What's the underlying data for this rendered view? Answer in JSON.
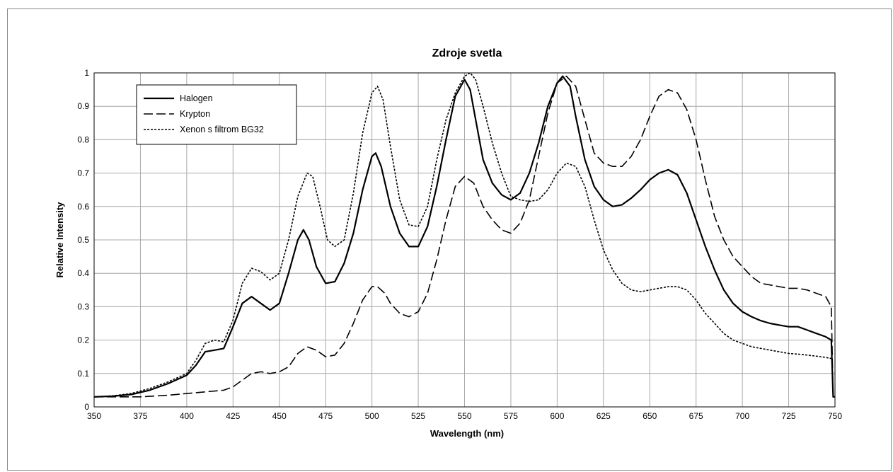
{
  "chart_data": {
    "type": "line",
    "title": "Zdroje svetla",
    "xlabel": "Wavelength (nm)",
    "ylabel": "Relative Intensity",
    "xlim": [
      350,
      750
    ],
    "ylim": [
      0,
      1
    ],
    "x_ticks": [
      "350",
      "375",
      "400",
      "425",
      "450",
      "475",
      "500",
      "525",
      "550",
      "575",
      "600",
      "625",
      "650",
      "675",
      "700",
      "725",
      "750"
    ],
    "y_ticks": [
      "0",
      "0.1",
      "0.2",
      "0.3",
      "0.4",
      "0.5",
      "0.6",
      "0.7",
      "0.8",
      "0.9",
      "1"
    ],
    "grid": true,
    "legend_position": "top-left",
    "series": [
      {
        "name": "Halogen",
        "style": "solid",
        "color": "#000000",
        "points": [
          [
            350,
            0.03
          ],
          [
            360,
            0.032
          ],
          [
            370,
            0.037
          ],
          [
            380,
            0.05
          ],
          [
            390,
            0.07
          ],
          [
            400,
            0.095
          ],
          [
            405,
            0.125
          ],
          [
            410,
            0.165
          ],
          [
            415,
            0.17
          ],
          [
            420,
            0.175
          ],
          [
            425,
            0.24
          ],
          [
            430,
            0.31
          ],
          [
            435,
            0.33
          ],
          [
            440,
            0.31
          ],
          [
            445,
            0.29
          ],
          [
            450,
            0.31
          ],
          [
            455,
            0.4
          ],
          [
            460,
            0.5
          ],
          [
            463,
            0.53
          ],
          [
            466,
            0.5
          ],
          [
            470,
            0.42
          ],
          [
            475,
            0.37
          ],
          [
            480,
            0.375
          ],
          [
            485,
            0.43
          ],
          [
            490,
            0.52
          ],
          [
            495,
            0.65
          ],
          [
            500,
            0.75
          ],
          [
            502,
            0.76
          ],
          [
            505,
            0.72
          ],
          [
            510,
            0.6
          ],
          [
            515,
            0.52
          ],
          [
            520,
            0.48
          ],
          [
            525,
            0.48
          ],
          [
            530,
            0.54
          ],
          [
            535,
            0.66
          ],
          [
            540,
            0.8
          ],
          [
            545,
            0.93
          ],
          [
            550,
            0.98
          ],
          [
            553,
            0.95
          ],
          [
            556,
            0.86
          ],
          [
            560,
            0.74
          ],
          [
            565,
            0.67
          ],
          [
            570,
            0.635
          ],
          [
            575,
            0.62
          ],
          [
            580,
            0.64
          ],
          [
            585,
            0.7
          ],
          [
            590,
            0.79
          ],
          [
            595,
            0.9
          ],
          [
            600,
            0.97
          ],
          [
            603,
            0.99
          ],
          [
            607,
            0.96
          ],
          [
            610,
            0.87
          ],
          [
            615,
            0.74
          ],
          [
            620,
            0.66
          ],
          [
            625,
            0.62
          ],
          [
            630,
            0.6
          ],
          [
            635,
            0.605
          ],
          [
            640,
            0.625
          ],
          [
            645,
            0.65
          ],
          [
            650,
            0.68
          ],
          [
            655,
            0.7
          ],
          [
            660,
            0.71
          ],
          [
            665,
            0.695
          ],
          [
            670,
            0.64
          ],
          [
            675,
            0.56
          ],
          [
            680,
            0.48
          ],
          [
            685,
            0.41
          ],
          [
            690,
            0.35
          ],
          [
            695,
            0.31
          ],
          [
            700,
            0.285
          ],
          [
            705,
            0.27
          ],
          [
            710,
            0.258
          ],
          [
            715,
            0.25
          ],
          [
            720,
            0.245
          ],
          [
            725,
            0.24
          ],
          [
            730,
            0.24
          ],
          [
            735,
            0.23
          ],
          [
            740,
            0.22
          ],
          [
            745,
            0.21
          ],
          [
            748,
            0.2
          ],
          [
            749,
            0.03
          ],
          [
            750,
            0.03
          ]
        ]
      },
      {
        "name": "Krypton",
        "style": "dashed",
        "color": "#000000",
        "points": [
          [
            350,
            0.03
          ],
          [
            360,
            0.03
          ],
          [
            375,
            0.03
          ],
          [
            390,
            0.035
          ],
          [
            400,
            0.04
          ],
          [
            410,
            0.045
          ],
          [
            420,
            0.05
          ],
          [
            425,
            0.06
          ],
          [
            430,
            0.08
          ],
          [
            435,
            0.1
          ],
          [
            440,
            0.105
          ],
          [
            445,
            0.1
          ],
          [
            450,
            0.105
          ],
          [
            455,
            0.12
          ],
          [
            460,
            0.16
          ],
          [
            465,
            0.18
          ],
          [
            470,
            0.17
          ],
          [
            475,
            0.15
          ],
          [
            480,
            0.155
          ],
          [
            485,
            0.19
          ],
          [
            490,
            0.25
          ],
          [
            495,
            0.32
          ],
          [
            500,
            0.36
          ],
          [
            503,
            0.36
          ],
          [
            507,
            0.34
          ],
          [
            510,
            0.31
          ],
          [
            515,
            0.28
          ],
          [
            520,
            0.27
          ],
          [
            525,
            0.285
          ],
          [
            530,
            0.34
          ],
          [
            535,
            0.44
          ],
          [
            540,
            0.56
          ],
          [
            545,
            0.66
          ],
          [
            550,
            0.69
          ],
          [
            555,
            0.67
          ],
          [
            560,
            0.6
          ],
          [
            565,
            0.56
          ],
          [
            570,
            0.53
          ],
          [
            575,
            0.52
          ],
          [
            580,
            0.55
          ],
          [
            585,
            0.62
          ],
          [
            590,
            0.75
          ],
          [
            595,
            0.88
          ],
          [
            600,
            0.97
          ],
          [
            605,
            0.99
          ],
          [
            610,
            0.96
          ],
          [
            615,
            0.86
          ],
          [
            620,
            0.76
          ],
          [
            625,
            0.73
          ],
          [
            630,
            0.72
          ],
          [
            635,
            0.72
          ],
          [
            640,
            0.75
          ],
          [
            645,
            0.8
          ],
          [
            650,
            0.87
          ],
          [
            655,
            0.93
          ],
          [
            660,
            0.95
          ],
          [
            665,
            0.94
          ],
          [
            670,
            0.89
          ],
          [
            675,
            0.8
          ],
          [
            680,
            0.68
          ],
          [
            685,
            0.57
          ],
          [
            690,
            0.5
          ],
          [
            695,
            0.45
          ],
          [
            700,
            0.42
          ],
          [
            705,
            0.39
          ],
          [
            710,
            0.37
          ],
          [
            715,
            0.365
          ],
          [
            720,
            0.36
          ],
          [
            725,
            0.355
          ],
          [
            730,
            0.355
          ],
          [
            735,
            0.35
          ],
          [
            740,
            0.34
          ],
          [
            745,
            0.33
          ],
          [
            748,
            0.3
          ],
          [
            749,
            0.03
          ],
          [
            750,
            0.03
          ]
        ]
      },
      {
        "name": "Xenon s filtrom BG32",
        "style": "dotted",
        "color": "#000000",
        "points": [
          [
            350,
            0.03
          ],
          [
            360,
            0.033
          ],
          [
            370,
            0.04
          ],
          [
            380,
            0.055
          ],
          [
            390,
            0.075
          ],
          [
            400,
            0.1
          ],
          [
            405,
            0.14
          ],
          [
            410,
            0.19
          ],
          [
            415,
            0.2
          ],
          [
            420,
            0.195
          ],
          [
            425,
            0.26
          ],
          [
            430,
            0.37
          ],
          [
            435,
            0.415
          ],
          [
            440,
            0.405
          ],
          [
            445,
            0.38
          ],
          [
            450,
            0.4
          ],
          [
            455,
            0.5
          ],
          [
            460,
            0.63
          ],
          [
            465,
            0.7
          ],
          [
            468,
            0.69
          ],
          [
            472,
            0.6
          ],
          [
            476,
            0.5
          ],
          [
            480,
            0.48
          ],
          [
            485,
            0.5
          ],
          [
            490,
            0.64
          ],
          [
            495,
            0.82
          ],
          [
            500,
            0.94
          ],
          [
            503,
            0.96
          ],
          [
            506,
            0.92
          ],
          [
            510,
            0.78
          ],
          [
            515,
            0.62
          ],
          [
            520,
            0.545
          ],
          [
            525,
            0.54
          ],
          [
            530,
            0.6
          ],
          [
            535,
            0.74
          ],
          [
            540,
            0.86
          ],
          [
            545,
            0.94
          ],
          [
            550,
            0.99
          ],
          [
            553,
            1.0
          ],
          [
            556,
            0.98
          ],
          [
            560,
            0.9
          ],
          [
            565,
            0.79
          ],
          [
            570,
            0.7
          ],
          [
            575,
            0.63
          ],
          [
            580,
            0.62
          ],
          [
            585,
            0.615
          ],
          [
            590,
            0.62
          ],
          [
            595,
            0.65
          ],
          [
            600,
            0.7
          ],
          [
            605,
            0.73
          ],
          [
            610,
            0.72
          ],
          [
            615,
            0.66
          ],
          [
            620,
            0.56
          ],
          [
            625,
            0.47
          ],
          [
            630,
            0.41
          ],
          [
            635,
            0.37
          ],
          [
            640,
            0.35
          ],
          [
            645,
            0.345
          ],
          [
            650,
            0.35
          ],
          [
            655,
            0.355
          ],
          [
            660,
            0.36
          ],
          [
            665,
            0.36
          ],
          [
            670,
            0.35
          ],
          [
            675,
            0.32
          ],
          [
            680,
            0.28
          ],
          [
            685,
            0.25
          ],
          [
            690,
            0.22
          ],
          [
            695,
            0.2
          ],
          [
            700,
            0.19
          ],
          [
            705,
            0.18
          ],
          [
            710,
            0.175
          ],
          [
            715,
            0.17
          ],
          [
            720,
            0.165
          ],
          [
            725,
            0.16
          ],
          [
            730,
            0.158
          ],
          [
            735,
            0.155
          ],
          [
            740,
            0.152
          ],
          [
            745,
            0.148
          ],
          [
            748,
            0.145
          ]
        ]
      }
    ]
  }
}
